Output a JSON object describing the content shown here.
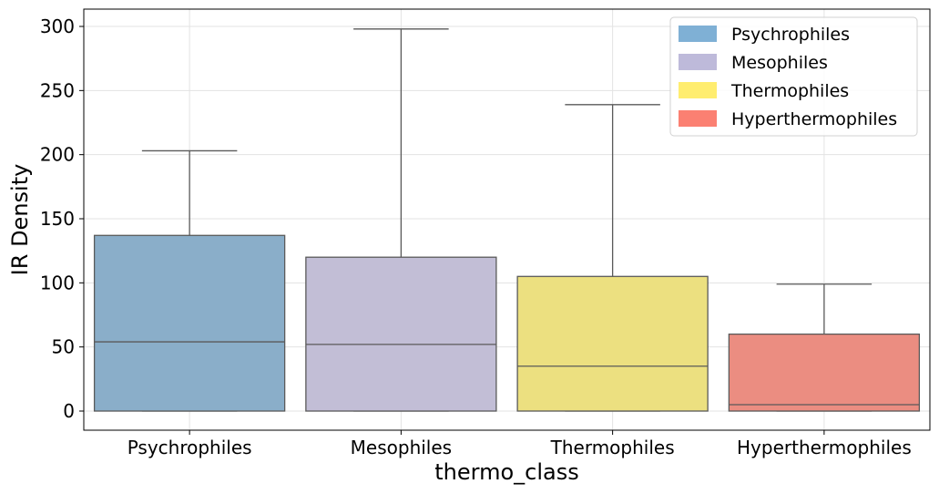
{
  "chart_data": {
    "type": "box",
    "title": "",
    "xlabel": "thermo_class",
    "ylabel": "IR Density",
    "ylim": [
      -15,
      313
    ],
    "yticks": [
      0,
      50,
      100,
      150,
      200,
      250,
      300
    ],
    "grid": true,
    "legend_position": "top-right",
    "categories": [
      "Psychrophiles",
      "Mesophiles",
      "Thermophiles",
      "Hyperthermophiles"
    ],
    "boxes": [
      {
        "category": "Psychrophiles",
        "whisker_low": 0,
        "q1": 0,
        "median": 54,
        "q3": 137,
        "whisker_high": 203,
        "color": "#8aaec9",
        "legend_color": "#7fb0d5"
      },
      {
        "category": "Mesophiles",
        "whisker_low": 0,
        "q1": 0,
        "median": 52,
        "q3": 120,
        "whisker_high": 298,
        "color": "#c2bed6",
        "legend_color": "#bebada"
      },
      {
        "category": "Thermophiles",
        "whisker_low": 0,
        "q1": 0,
        "median": 35,
        "q3": 105,
        "whisker_high": 239,
        "color": "#ece080",
        "legend_color": "#ffed6f"
      },
      {
        "category": "Hyperthermophiles",
        "whisker_low": 0,
        "q1": 0,
        "median": 5,
        "q3": 60,
        "whisker_high": 99,
        "color": "#eb8d81",
        "legend_color": "#fb8072"
      }
    ],
    "legend": [
      "Psychrophiles",
      "Mesophiles",
      "Thermophiles",
      "Hyperthermophiles"
    ]
  }
}
